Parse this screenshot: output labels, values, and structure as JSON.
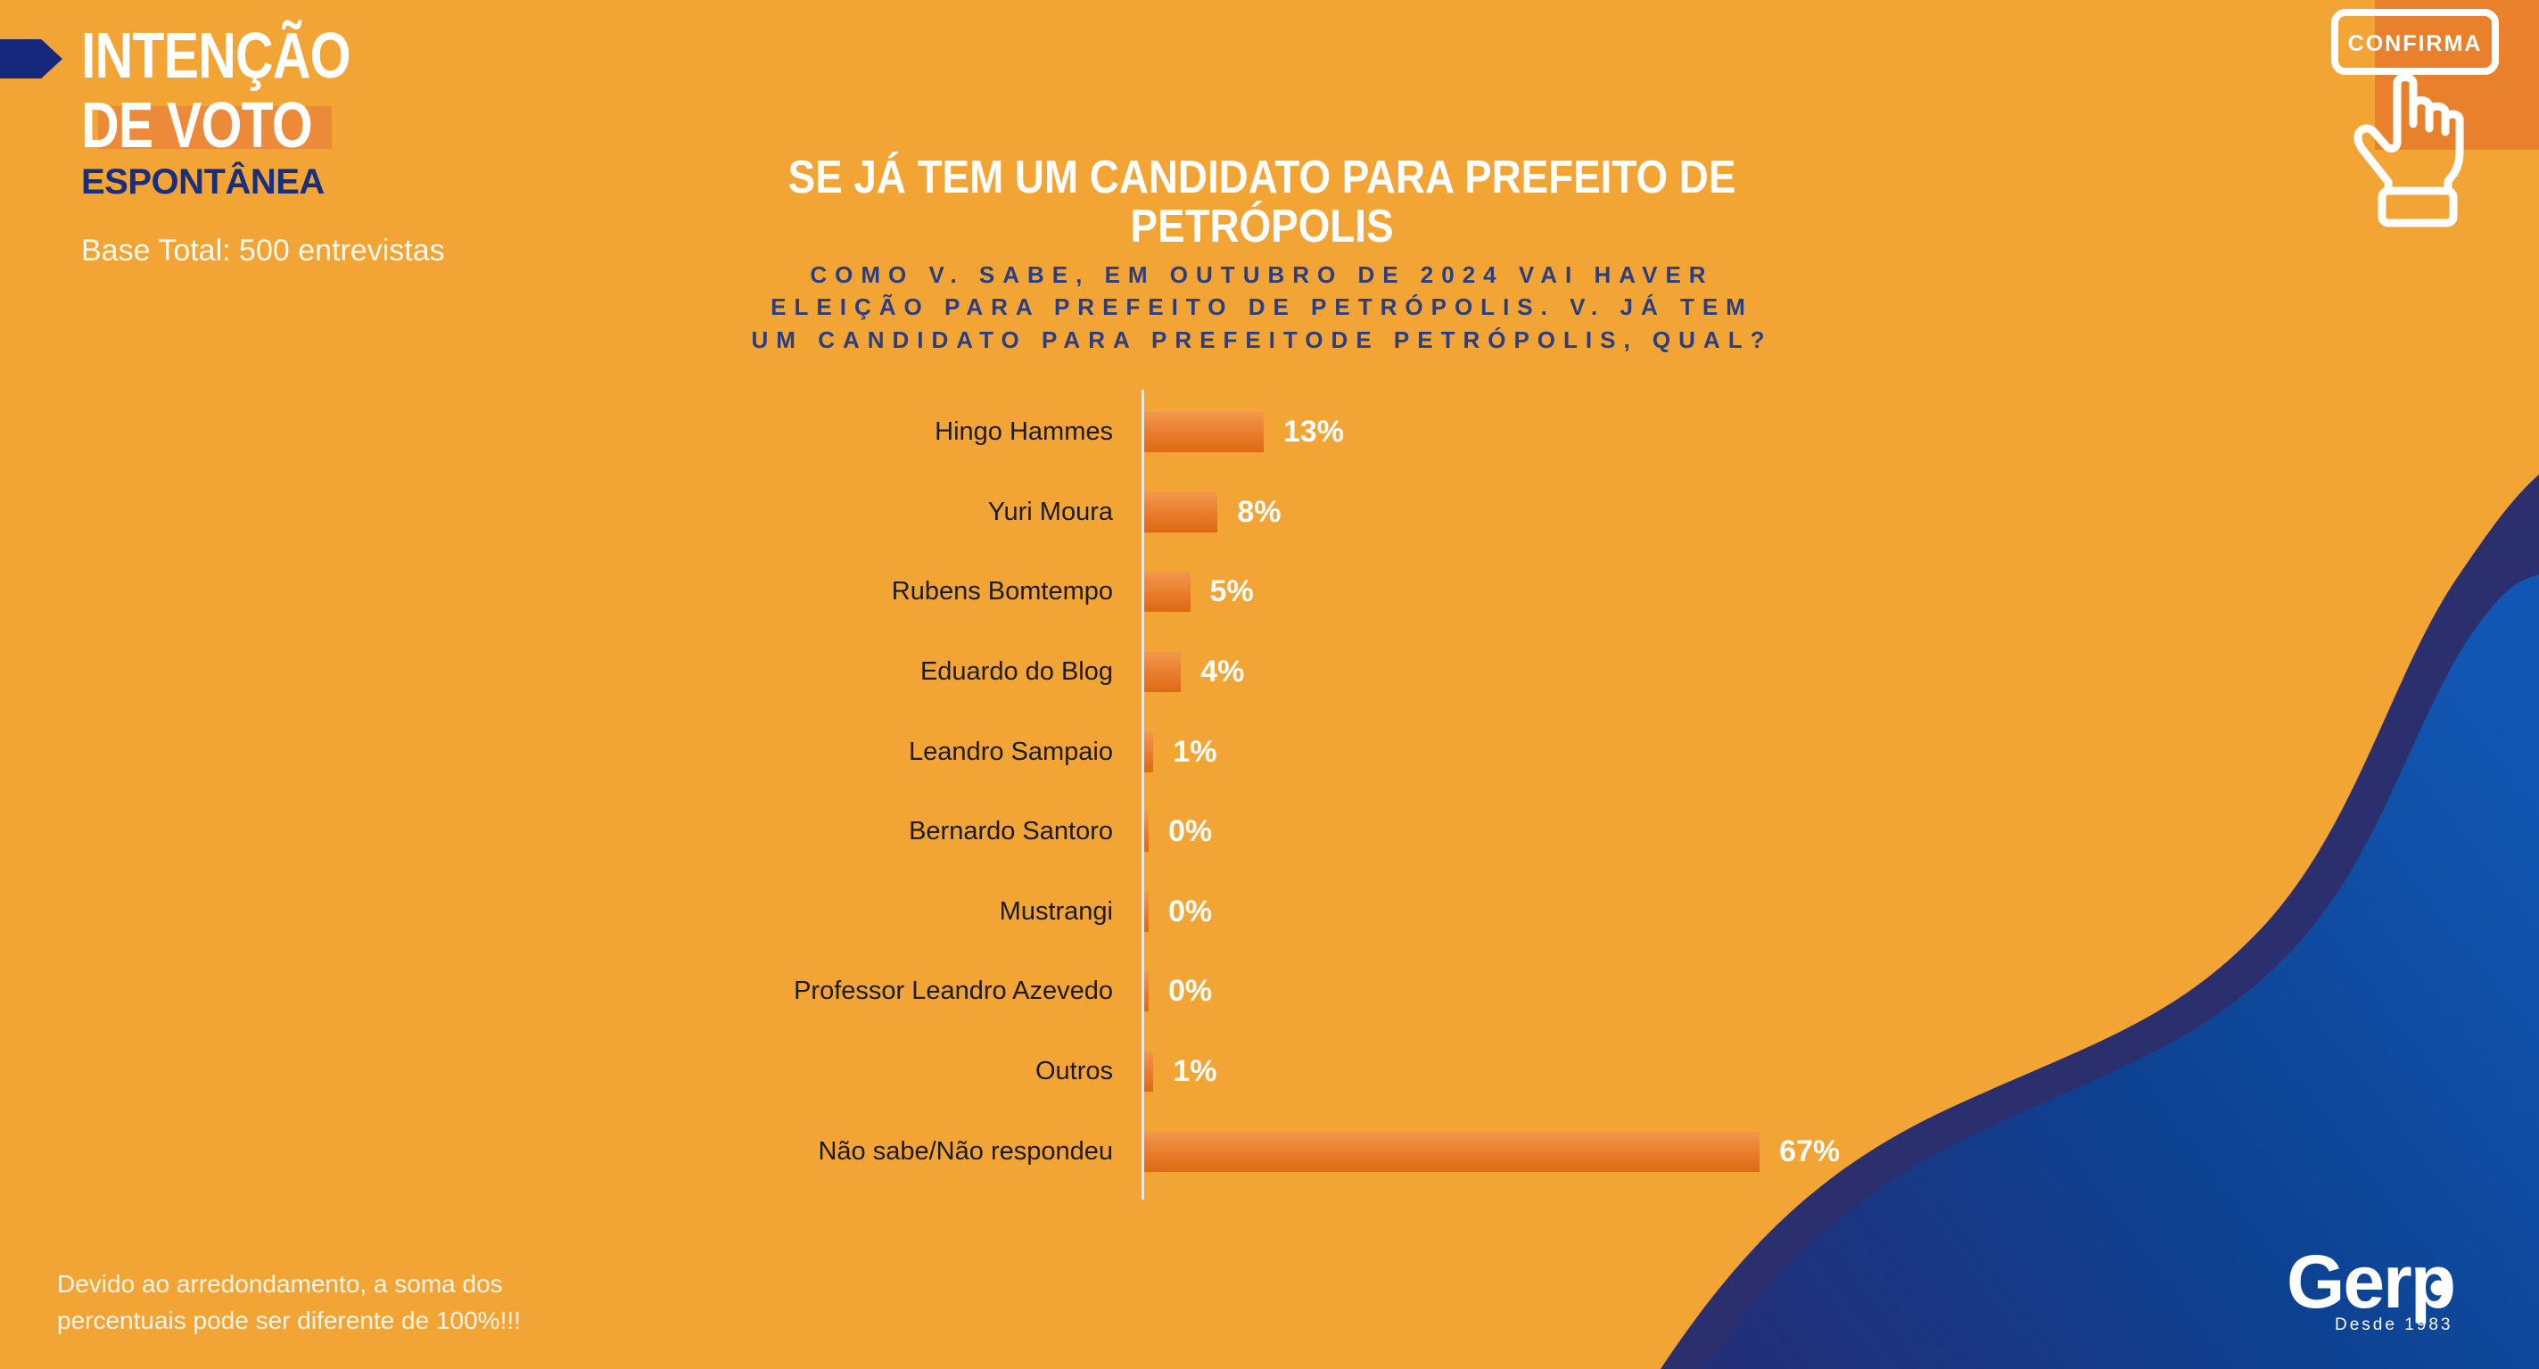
{
  "page": {
    "bg_color": "#F2A434",
    "accent_orange": "#E8802C",
    "highlight_orange": "#EC8A3A",
    "navy": "#2B2F6E",
    "wave_blue_dark": "#232F79",
    "wave_blue_bright": "#1156B2",
    "tag_blue": "#15287C"
  },
  "header": {
    "title": "INTENÇÃO\nDE VOTO",
    "subtitle": "ESPONTÂNEA",
    "base_note": "Base Total: 500 entrevistas"
  },
  "confirm_stamp": {
    "label": "CONFIRMA"
  },
  "chart": {
    "title": "SE JÁ TEM UM CANDIDATO PARA PREFEITO DE\nPETRÓPOLIS",
    "question": "COMO V. SABE, EM OUTUBRO DE 2024 VAI HAVER\nELEIÇÃO PARA PREFEITO DE PETRÓPOLIS. V. JÁ TEM\nUM CANDIDATO PARA PREFEITODE PETRÓPOLIS, QUAL?"
  },
  "chart_data": {
    "type": "bar",
    "orientation": "horizontal",
    "title": "SE JÁ TEM UM CANDIDATO PARA PREFEITO DE PETRÓPOLIS",
    "xlabel": "",
    "ylabel": "",
    "xlim": [
      0,
      100
    ],
    "grid": false,
    "legend": false,
    "categories": [
      "Hingo Hammes",
      "Yuri Moura",
      "Rubens Bomtempo",
      "Eduardo do Blog",
      "Leandro Sampaio",
      "Bernardo Santoro",
      "Mustrangi",
      "Professor Leandro Azevedo",
      "Outros",
      "Não sabe/Não respondeu"
    ],
    "values": [
      13,
      8,
      5,
      4,
      1,
      0,
      0,
      0,
      1,
      67
    ],
    "value_labels": [
      "13%",
      "8%",
      "5%",
      "4%",
      "1%",
      "0%",
      "0%",
      "0%",
      "1%",
      "67%"
    ],
    "bar_color_top": "#F2974F",
    "bar_color_bottom": "#DD6914"
  },
  "footer": {
    "note": "Devido ao arredondamento, a soma dos\npercentuais pode ser diferente de 100%!!!"
  },
  "logo": {
    "name": "Gerp",
    "tagline": "Desde 1983"
  }
}
